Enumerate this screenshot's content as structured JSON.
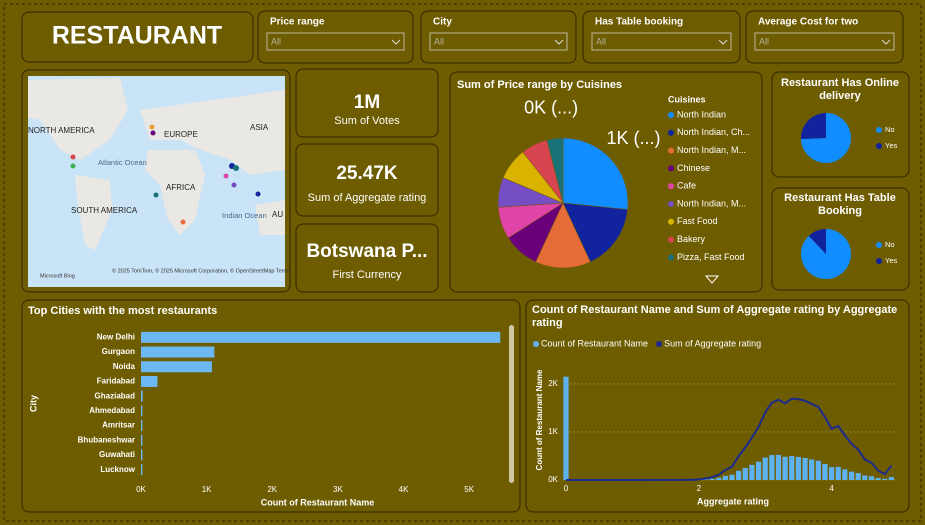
{
  "header": {
    "title": "RESTAURANT"
  },
  "slicers": [
    {
      "label": "Price range",
      "selection": "All"
    },
    {
      "label": "City",
      "selection": "All"
    },
    {
      "label": "Has Table booking",
      "selection": "All"
    },
    {
      "label": "Average Cost for two",
      "selection": "All"
    }
  ],
  "cards": [
    {
      "value": "1M",
      "label": "Sum of Votes"
    },
    {
      "value": "25.47K",
      "label": "Sum of Aggregate rating"
    },
    {
      "value": "Botswana P...",
      "label": "First Currency"
    }
  ],
  "map": {
    "labels": [
      "NORTH AMERICA",
      "EUROPE",
      "ASIA",
      "Atlantic Ocean",
      "AFRICA",
      "SOUTH AMERICA",
      "Indian Ocean",
      "AU"
    ],
    "attribution": "© 2025 TomTom, © 2025 Microsoft Corporation, © OpenStreetMap Terms",
    "provider": "Microsoft Bing"
  },
  "chart_data": [
    {
      "type": "pie",
      "title": "Sum of Price range by Cuisines",
      "legend_title": "Cuisines",
      "legend": "right",
      "categories": [
        "North Indian",
        "North Indian, Ch...",
        "North Indian, M...",
        "Chinese",
        "Cafe",
        "North Indian, M...",
        "Fast Food",
        "Bakery",
        "Pizza, Fast Food"
      ],
      "values": [
        1000,
        620,
        520,
        340,
        300,
        280,
        300,
        250,
        150
      ],
      "value_labels": [
        "1K (...)",
        null,
        null,
        null,
        null,
        null,
        null,
        null,
        "0K (...)"
      ],
      "colors": [
        "#118dff",
        "#12239e",
        "#e66c37",
        "#6b007b",
        "#e044a7",
        "#744ec2",
        "#d9b300",
        "#d64550",
        "#197278"
      ]
    },
    {
      "type": "pie",
      "title": "Restaurant Has Online delivery",
      "legend": "right",
      "categories": [
        "No",
        "Yes"
      ],
      "values": [
        7100,
        2451
      ],
      "colors": [
        "#118dff",
        "#12239e"
      ]
    },
    {
      "type": "pie",
      "title": "Restaurant Has Table Booking",
      "legend": "right",
      "categories": [
        "No",
        "Yes"
      ],
      "values": [
        8393,
        1158
      ],
      "colors": [
        "#118dff",
        "#12239e"
      ]
    },
    {
      "type": "bar",
      "orientation": "horizontal",
      "title": "Top Cities with the most restaurants",
      "x_label": "Count of Restaurant Name",
      "y_label": "City",
      "categories": [
        "New Delhi",
        "Gurgaon",
        "Noida",
        "Faridabad",
        "Ghaziabad",
        "Ahmedabad",
        "Amritsar",
        "Bhubaneshwar",
        "Guwahati",
        "Lucknow"
      ],
      "values": [
        5473,
        1118,
        1080,
        251,
        25,
        21,
        21,
        21,
        21,
        21
      ],
      "color": "#6cb8f2",
      "grid": false,
      "xlim": [
        0,
        5500
      ],
      "xticks": [
        {
          "value": 0,
          "label": "0K"
        },
        {
          "value": 1000,
          "label": "1K"
        },
        {
          "value": 2000,
          "label": "2K"
        },
        {
          "value": 3000,
          "label": "3K"
        },
        {
          "value": 4000,
          "label": "4K"
        },
        {
          "value": 5000,
          "label": "5K"
        }
      ]
    },
    {
      "type": "combo",
      "title": "Count of Restaurant Name and Sum of Aggregate rating by Aggregate rating",
      "x_label": "Aggregate rating",
      "y_label": "Count of Restaurant Name",
      "legend": "top",
      "grid": true,
      "x": [
        0,
        1.8,
        1.9,
        2.0,
        2.1,
        2.2,
        2.3,
        2.4,
        2.5,
        2.6,
        2.7,
        2.8,
        2.9,
        3.0,
        3.1,
        3.2,
        3.3,
        3.4,
        3.5,
        3.6,
        3.7,
        3.8,
        3.9,
        4.0,
        4.1,
        4.2,
        4.3,
        4.4,
        4.5,
        4.6,
        4.7,
        4.8,
        4.9
      ],
      "series": [
        {
          "name": "Count of Restaurant Name",
          "type": "bar",
          "color": "#5fb2f0",
          "values": [
            2148,
            1,
            2,
            7,
            15,
            27,
            47,
            87,
            110,
            191,
            250,
            315,
            381,
            468,
            519,
            522,
            483,
            498,
            480,
            458,
            427,
            400,
            335,
            266,
            274,
            221,
            174,
            144,
            95,
            78,
            42,
            25,
            61
          ]
        },
        {
          "name": "Sum of Aggregate rating",
          "type": "line",
          "color": "#1b2a8c",
          "values": [
            0,
            1.8,
            3.8,
            14,
            31.5,
            59.4,
            108.1,
            208.8,
            275,
            496.6,
            675,
            882,
            1104.9,
            1404,
            1608.9,
            1670.4,
            1593.9,
            1693.2,
            1680,
            1648.8,
            1579.9,
            1520,
            1306.5,
            1064,
            1123.4,
            928.2,
            748.2,
            633.6,
            427.5,
            358.8,
            197.4,
            120,
            298.9
          ]
        }
      ],
      "xlim": [
        0,
        5
      ],
      "xticks": [
        0,
        2,
        4
      ],
      "ylim": [
        0,
        2600
      ],
      "yticks": [
        {
          "value": 0,
          "label": "0K"
        },
        {
          "value": 1000,
          "label": "1K"
        },
        {
          "value": 2000,
          "label": "2K"
        }
      ]
    }
  ]
}
